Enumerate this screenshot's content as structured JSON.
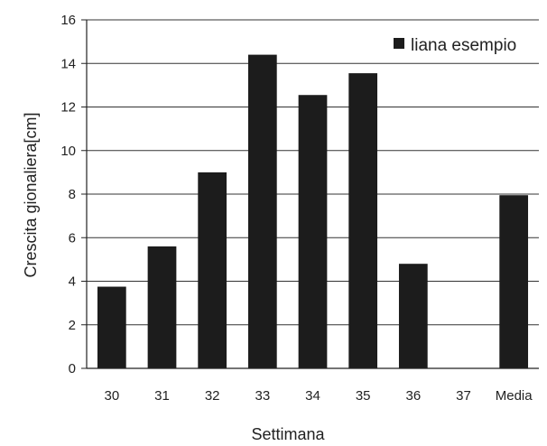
{
  "chart_data": {
    "type": "bar",
    "title": "",
    "xlabel": "Settimana",
    "ylabel": "Crescita gionaliera[cm]",
    "categories": [
      "30",
      "31",
      "32",
      "33",
      "34",
      "35",
      "36",
      "37",
      "Media"
    ],
    "series": [
      {
        "name": "liana esempio",
        "values": [
          3.75,
          5.6,
          9.0,
          14.4,
          12.55,
          13.55,
          4.8,
          null,
          7.95
        ],
        "color": "#1c1c1c"
      }
    ],
    "ylim": [
      0,
      16
    ],
    "yticks": [
      0,
      2,
      4,
      6,
      8,
      10,
      12,
      14,
      16
    ],
    "grid": true,
    "legend_position": "top-right"
  }
}
